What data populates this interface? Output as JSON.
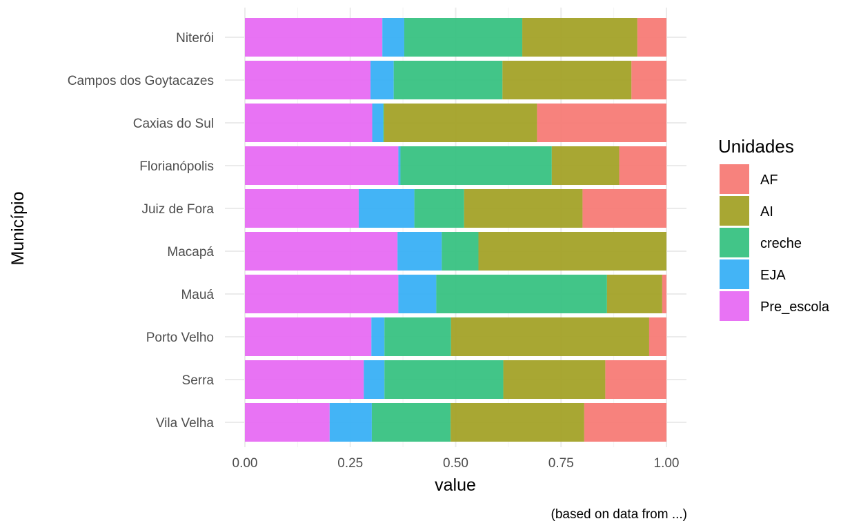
{
  "chart_data": {
    "type": "bar",
    "orientation": "horizontal",
    "stacked": true,
    "normalized": true,
    "categories": [
      "Niterói",
      "Campos dos Goytacazes",
      "Caxias do Sul",
      "Florianópolis",
      "Juiz de Fora",
      "Macapá",
      "Mauá",
      "Porto Velho",
      "Serra",
      "Vila Velha"
    ],
    "series": [
      {
        "name": "Pre_escola",
        "color": "#E76BF3",
        "values": [
          0.326,
          0.298,
          0.302,
          0.364,
          0.27,
          0.362,
          0.364,
          0.3,
          0.282,
          0.201
        ]
      },
      {
        "name": "EJA",
        "color": "#39B0F6",
        "values": [
          0.052,
          0.055,
          0.026,
          0.005,
          0.132,
          0.105,
          0.09,
          0.031,
          0.049,
          0.1
        ]
      },
      {
        "name": "creche",
        "color": "#38C282",
        "values": [
          0.28,
          0.258,
          0.002,
          0.359,
          0.118,
          0.087,
          0.405,
          0.158,
          0.282,
          0.187
        ]
      },
      {
        "name": "AI",
        "color": "#A3A228",
        "values": [
          0.273,
          0.306,
          0.363,
          0.16,
          0.281,
          0.446,
          0.131,
          0.47,
          0.242,
          0.317
        ]
      },
      {
        "name": "AF",
        "color": "#F77B76",
        "values": [
          0.069,
          0.083,
          0.307,
          0.112,
          0.199,
          0.0,
          0.01,
          0.041,
          0.145,
          0.195
        ]
      }
    ],
    "legend_order": [
      "AF",
      "AI",
      "creche",
      "EJA",
      "Pre_escola"
    ],
    "x_ticks": [
      0,
      0.25,
      0.5,
      0.75,
      1
    ],
    "x_tick_labels": [
      "0.00",
      "0.25",
      "0.50",
      "0.75",
      "1.00"
    ],
    "xlim": [
      0,
      1
    ],
    "xlabel": "value",
    "ylabel": "Município",
    "legend_title": "Unidades",
    "legend_position": "right",
    "caption": "(based on data from ...)",
    "grid": true
  }
}
